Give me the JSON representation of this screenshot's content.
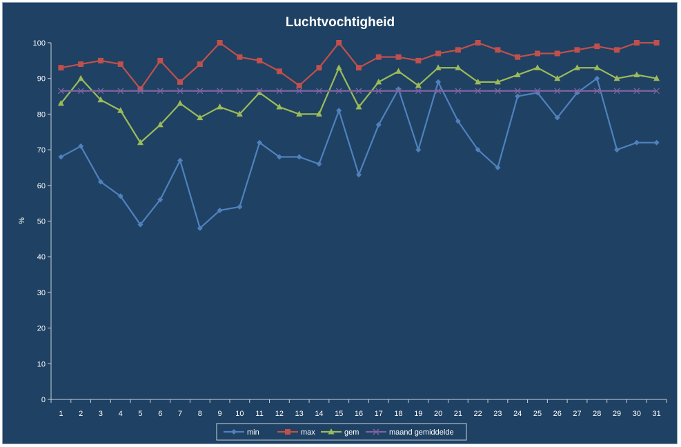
{
  "chart_data": {
    "type": "line",
    "title": "Luchtvochtigheid",
    "ylabel": "%",
    "xlabel": "",
    "ylim": [
      0,
      100
    ],
    "yticks": [
      0,
      10,
      20,
      30,
      40,
      50,
      60,
      70,
      80,
      90,
      100
    ],
    "categories": [
      "1",
      "2",
      "3",
      "4",
      "5",
      "6",
      "7",
      "8",
      "9",
      "10",
      "11",
      "12",
      "13",
      "14",
      "15",
      "16",
      "17",
      "18",
      "19",
      "20",
      "21",
      "22",
      "23",
      "24",
      "25",
      "26",
      "27",
      "28",
      "29",
      "30",
      "31"
    ],
    "legend_position": "bottom",
    "grid": false,
    "series": [
      {
        "name": "min",
        "color": "#4f81bd",
        "marker": "diamond",
        "values": [
          68,
          71,
          61,
          57,
          49,
          56,
          67,
          48,
          53,
          54,
          72,
          68,
          68,
          66,
          81,
          63,
          77,
          87,
          70,
          89,
          78,
          70,
          65,
          85,
          86,
          79,
          86,
          90,
          70,
          72,
          72
        ]
      },
      {
        "name": "max",
        "color": "#c0504d",
        "marker": "square",
        "values": [
          93,
          94,
          95,
          94,
          87,
          95,
          89,
          94,
          100,
          96,
          95,
          92,
          88,
          93,
          100,
          93,
          96,
          96,
          95,
          97,
          98,
          100,
          98,
          96,
          97,
          97,
          98,
          99,
          98,
          100,
          100
        ]
      },
      {
        "name": "gem",
        "color": "#9bbb59",
        "marker": "triangle",
        "values": [
          83,
          90,
          84,
          81,
          72,
          77,
          83,
          79,
          82,
          80,
          86,
          82,
          80,
          80,
          93,
          82,
          89,
          92,
          88,
          93,
          93,
          89,
          89,
          91,
          93,
          90,
          93,
          93,
          90,
          91,
          90
        ]
      },
      {
        "name": "maand gemiddelde",
        "color": "#8064a2",
        "marker": "x",
        "values": [
          86.5,
          86.5,
          86.5,
          86.5,
          86.5,
          86.5,
          86.5,
          86.5,
          86.5,
          86.5,
          86.5,
          86.5,
          86.5,
          86.5,
          86.5,
          86.5,
          86.5,
          86.5,
          86.5,
          86.5,
          86.5,
          86.5,
          86.5,
          86.5,
          86.5,
          86.5,
          86.5,
          86.5,
          86.5,
          86.5,
          86.5
        ]
      }
    ]
  }
}
